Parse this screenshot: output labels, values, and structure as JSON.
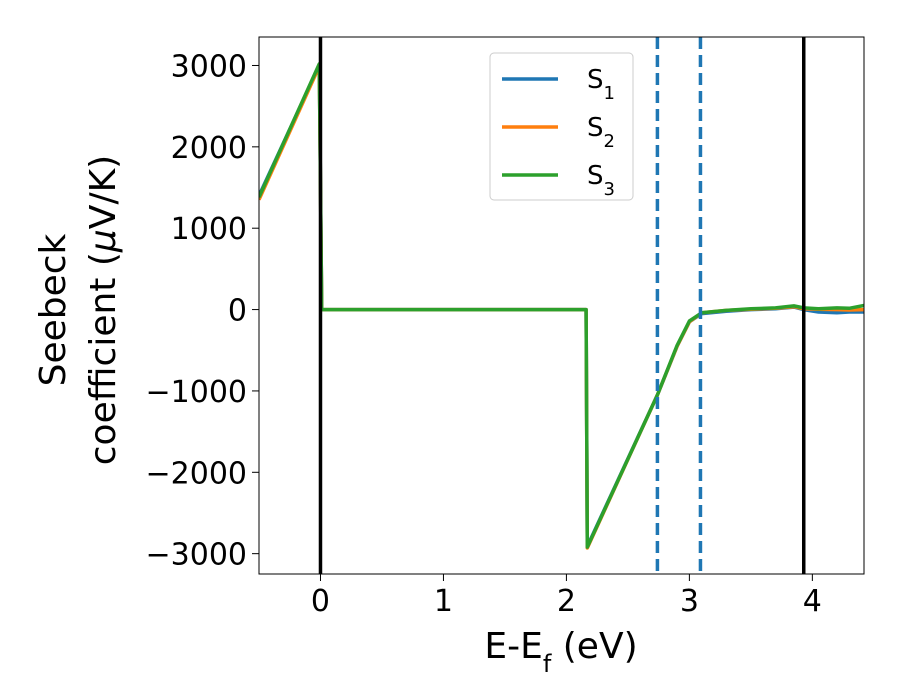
{
  "chart_data": {
    "type": "line",
    "xlabel": "E-E",
    "xlabel_sub": "f",
    "xlabel_unit": " (eV)",
    "ylabel_line1": "Seebeck",
    "ylabel_line2": "coefficient  (",
    "ylabel_mu": "μ",
    "ylabel_unit": "V/K)",
    "xlim": [
      -0.5,
      4.42
    ],
    "ylim": [
      -3250,
      3350
    ],
    "xticks": [
      0,
      1,
      2,
      3,
      4
    ],
    "xtick_labels": [
      "0",
      "1",
      "2",
      "3",
      "4"
    ],
    "yticks": [
      3000,
      2000,
      1000,
      0,
      -1000,
      -2000,
      -3000
    ],
    "ytick_labels": [
      "3000",
      "2000",
      "1000",
      "0",
      "−1000",
      "−2000",
      "−3000"
    ],
    "grid": false,
    "legend_position": "top-center",
    "vertical_lines": [
      {
        "x": 0,
        "style": "solid",
        "color": "#000000"
      },
      {
        "x": 3.93,
        "style": "solid",
        "color": "#000000"
      },
      {
        "x": 2.74,
        "style": "dashed",
        "color": "#1f77b4"
      },
      {
        "x": 3.09,
        "style": "dashed",
        "color": "#1f77b4"
      }
    ],
    "series": [
      {
        "name": "S",
        "sub": "1",
        "color": "#1f77b4",
        "points": [
          [
            -0.5,
            1400
          ],
          [
            -0.01,
            3000
          ],
          [
            0.01,
            0
          ],
          [
            2.16,
            0
          ],
          [
            2.17,
            -2910
          ],
          [
            2.74,
            -1050
          ],
          [
            2.9,
            -450
          ],
          [
            3.0,
            -150
          ],
          [
            3.1,
            -50
          ],
          [
            3.3,
            -20
          ],
          [
            3.5,
            0
          ],
          [
            3.7,
            10
          ],
          [
            3.85,
            30
          ],
          [
            3.93,
            0
          ],
          [
            4.05,
            -30
          ],
          [
            4.2,
            -40
          ],
          [
            4.3,
            -30
          ],
          [
            4.42,
            -30
          ]
        ]
      },
      {
        "name": "S",
        "sub": "2",
        "color": "#ff7f0e",
        "points": [
          [
            -0.5,
            1350
          ],
          [
            -0.01,
            2990
          ],
          [
            0.01,
            0
          ],
          [
            2.16,
            0
          ],
          [
            2.17,
            -2930
          ],
          [
            2.74,
            -1050
          ],
          [
            2.9,
            -450
          ],
          [
            3.0,
            -150
          ],
          [
            3.1,
            -40
          ],
          [
            3.3,
            -10
          ],
          [
            3.5,
            5
          ],
          [
            3.7,
            15
          ],
          [
            3.85,
            35
          ],
          [
            3.93,
            10
          ],
          [
            4.05,
            5
          ],
          [
            4.2,
            0
          ],
          [
            4.3,
            -5
          ],
          [
            4.42,
            0
          ]
        ]
      },
      {
        "name": "S",
        "sub": "3",
        "color": "#2ca02c",
        "points": [
          [
            -0.5,
            1380
          ],
          [
            -0.01,
            3020
          ],
          [
            0.01,
            0
          ],
          [
            2.16,
            0
          ],
          [
            2.17,
            -2920
          ],
          [
            2.74,
            -1050
          ],
          [
            2.9,
            -440
          ],
          [
            3.0,
            -140
          ],
          [
            3.1,
            -40
          ],
          [
            3.3,
            -10
          ],
          [
            3.5,
            10
          ],
          [
            3.7,
            20
          ],
          [
            3.85,
            45
          ],
          [
            3.93,
            20
          ],
          [
            4.05,
            10
          ],
          [
            4.2,
            20
          ],
          [
            4.3,
            15
          ],
          [
            4.42,
            50
          ]
        ]
      }
    ]
  }
}
